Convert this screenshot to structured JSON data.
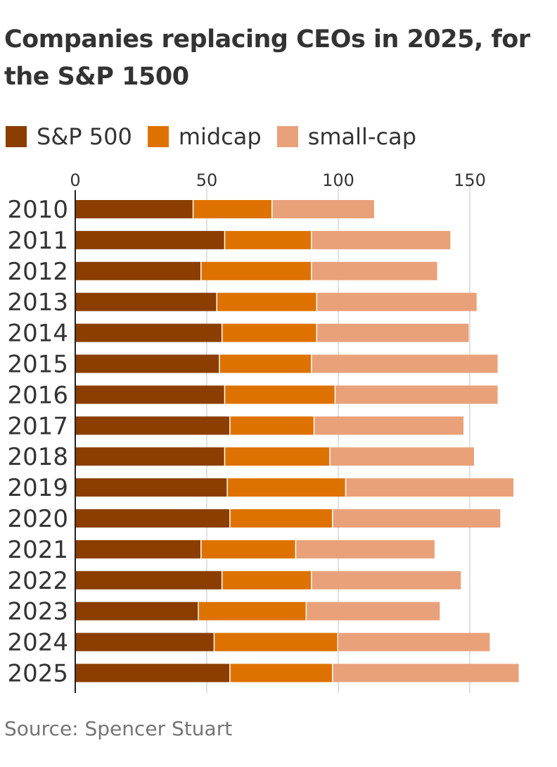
{
  "title": "Companies replacing CEOs in 2025, for the S&P 1500",
  "source": "Source: Spencer Stuart",
  "legend": [
    {
      "label": "S&P 500",
      "color": "#8B3E00"
    },
    {
      "label": "midcap",
      "color": "#DE7200"
    },
    {
      "label": "small-cap",
      "color": "#E9A17A"
    }
  ],
  "chart_data": {
    "type": "bar",
    "orientation": "horizontal",
    "stacked": true,
    "title": "Companies replacing CEOs in 2025, for the S&P 1500",
    "categories": [
      "2010",
      "2011",
      "2012",
      "2013",
      "2014",
      "2015",
      "2016",
      "2017",
      "2018",
      "2019",
      "2020",
      "2021",
      "2022",
      "2023",
      "2024",
      "2025"
    ],
    "series": [
      {
        "name": "S&P 500",
        "color": "#8B3E00",
        "values": [
          45,
          57,
          48,
          54,
          56,
          55,
          57,
          59,
          57,
          58,
          59,
          48,
          56,
          47,
          53,
          59
        ]
      },
      {
        "name": "midcap",
        "color": "#DE7200",
        "values": [
          30,
          33,
          42,
          38,
          36,
          35,
          42,
          32,
          40,
          45,
          39,
          36,
          34,
          41,
          47,
          39
        ]
      },
      {
        "name": "small-cap",
        "color": "#E9A17A",
        "values": [
          39,
          53,
          48,
          61,
          58,
          71,
          62,
          57,
          55,
          64,
          64,
          53,
          57,
          51,
          58,
          71
        ]
      }
    ],
    "xlim": [
      0,
      170
    ],
    "xticks": [
      0,
      50,
      100,
      150
    ],
    "grid": true,
    "legend_position": "top-left"
  }
}
